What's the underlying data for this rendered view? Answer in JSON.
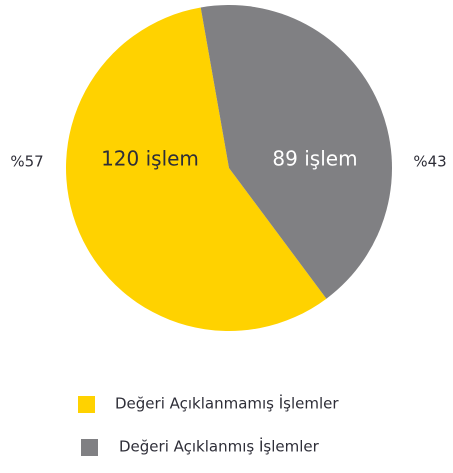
{
  "chart_data": {
    "type": "pie",
    "categories": [
      "Değeri Açıklanmamış İşlemler",
      "Değeri Açıklanmış İşlemler"
    ],
    "values": [
      120,
      89
    ],
    "value_labels": [
      "120 işlem",
      "89 işlem"
    ],
    "percentages": [
      57,
      43
    ],
    "percentage_labels": [
      "%57",
      "%43"
    ],
    "colors": [
      "#ffd200",
      "#808083"
    ]
  }
}
